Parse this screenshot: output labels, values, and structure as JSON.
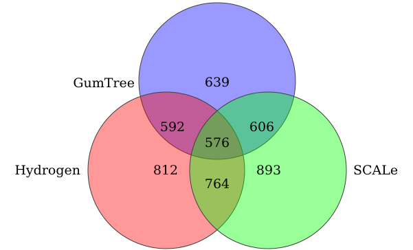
{
  "diagram": {
    "type": "venn",
    "sets": [
      {
        "name": "GumTree",
        "color": "#0000ff"
      },
      {
        "name": "Hydrogen",
        "color": "#ff0000"
      },
      {
        "name": "SCALe",
        "color": "#00ff00"
      }
    ],
    "regions": {
      "gumtree_only": "639",
      "gumtree_hydrogen": "592",
      "gumtree_scale": "606",
      "all_three": "576",
      "hydrogen_only": "812",
      "hydrogen_scale": "764",
      "scale_only": "893"
    }
  }
}
